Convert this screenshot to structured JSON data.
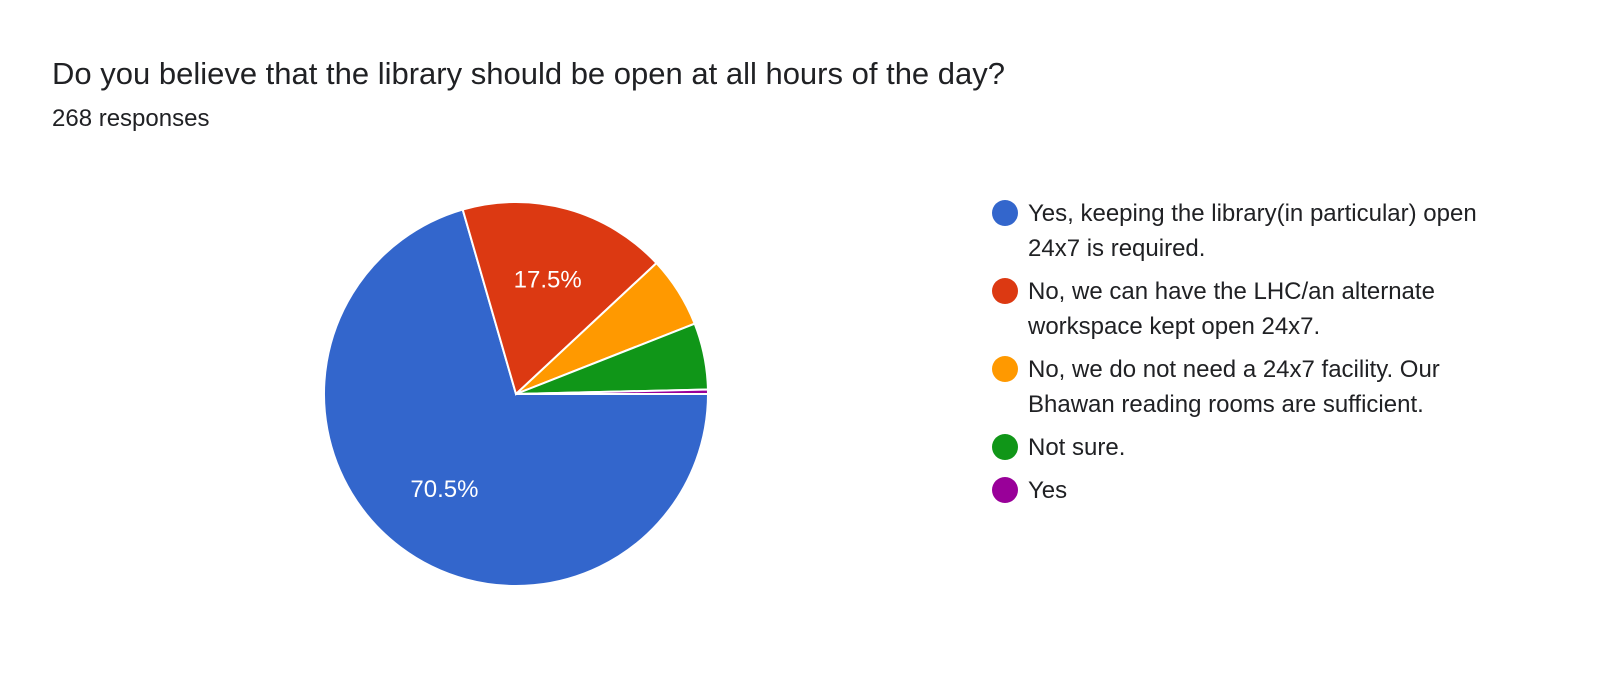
{
  "chart_data": {
    "type": "pie",
    "title": "Do you believe that the library should be open at all hours of the day?",
    "subtitle": "268 responses",
    "legend_position": "right",
    "slices": [
      {
        "label": "Yes, keeping the library(in particular) open 24x7 is required.",
        "count": 189,
        "percent": 70.5,
        "data_label": "70.5%",
        "color": "#3366cc"
      },
      {
        "label": "No, we can have the LHC/an alternate workspace kept open 24x7.",
        "count": 47,
        "percent": 17.5,
        "data_label": "17.5%",
        "color": "#dc3912"
      },
      {
        "label": "No, we do not need a 24x7 facility. Our Bhawan reading rooms are sufficient.",
        "count": 16,
        "percent": 6.0,
        "data_label": "",
        "color": "#ff9900"
      },
      {
        "label": "Not sure.",
        "count": 15,
        "percent": 5.6,
        "data_label": "",
        "color": "#109618"
      },
      {
        "label": "Yes",
        "count": 1,
        "percent": 0.4,
        "data_label": "",
        "color": "#990099"
      }
    ]
  }
}
